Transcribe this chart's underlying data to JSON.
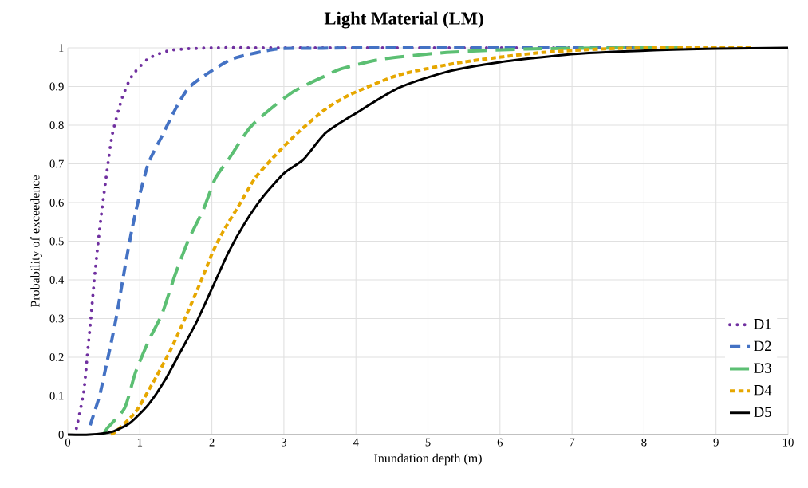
{
  "chart_data": {
    "type": "line",
    "title": "Light Material (LM)",
    "xlabel": "Inundation depth (m)",
    "ylabel": "Probability of exceedence",
    "xlim": [
      0,
      10
    ],
    "xticks": [
      0,
      1,
      2,
      3,
      4,
      5,
      6,
      7,
      8,
      9,
      10
    ],
    "ylim": [
      0,
      1
    ],
    "yticks": [
      0,
      0.1,
      0.2,
      0.3,
      0.4,
      0.5,
      0.6,
      0.7,
      0.8,
      0.9,
      1
    ],
    "grid": true,
    "legend": "bottom right",
    "marker": "none",
    "series": [
      {
        "name": "D1",
        "color": "#7030a0",
        "line_style": "dotted",
        "x": [
          0.12,
          0.22,
          0.27,
          0.32,
          0.365,
          0.417,
          0.476,
          0.543,
          0.617,
          0.75,
          0.886,
          1.118,
          1.44,
          2,
          3,
          5,
          7
        ],
        "values": [
          0.016,
          0.109,
          0.204,
          0.3,
          0.395,
          0.49,
          0.585,
          0.68,
          0.775,
          0.868,
          0.926,
          0.972,
          0.994,
          1,
          1,
          1,
          1
        ]
      },
      {
        "name": "D2",
        "color": "#4472c4",
        "line_style": "dashed",
        "x": [
          0.31,
          0.44,
          0.535,
          0.61,
          0.68,
          0.74,
          0.81,
          0.886,
          0.96,
          1.03,
          1.126,
          1.31,
          1.495,
          1.68,
          1.975,
          2.31,
          2.9,
          3.5,
          4,
          6,
          8
        ],
        "values": [
          0.024,
          0.1,
          0.18,
          0.244,
          0.31,
          0.375,
          0.45,
          0.526,
          0.59,
          0.643,
          0.705,
          0.773,
          0.842,
          0.897,
          0.938,
          0.973,
          0.997,
          0.999,
          1,
          1,
          1
        ]
      },
      {
        "name": "D3",
        "color": "#5cbf73",
        "line_style": "dashed",
        "x": [
          0.5,
          0.55,
          0.79,
          0.94,
          1.126,
          1.31,
          1.495,
          1.68,
          1.88,
          2.05,
          2.23,
          2.53,
          2.86,
          3.16,
          3.58,
          3.8,
          4.37,
          5.26,
          6.37,
          7.7,
          8.5
        ],
        "values": [
          0,
          0.017,
          0.069,
          0.161,
          0.244,
          0.313,
          0.416,
          0.505,
          0.581,
          0.663,
          0.711,
          0.794,
          0.849,
          0.89,
          0.928,
          0.946,
          0.971,
          0.988,
          0.997,
          1,
          1
        ]
      },
      {
        "name": "D4",
        "color": "#e6a700",
        "line_style": "dashed",
        "x": [
          0.6,
          0.68,
          0.94,
          1.16,
          1.42,
          1.64,
          1.86,
          2.01,
          2.16,
          2.38,
          2.6,
          2.86,
          3.19,
          3.58,
          3.93,
          4.6,
          5.48,
          6.59,
          7.7,
          9,
          9.5
        ],
        "values": [
          0,
          0.01,
          0.058,
          0.127,
          0.216,
          0.306,
          0.402,
          0.471,
          0.526,
          0.594,
          0.663,
          0.718,
          0.78,
          0.842,
          0.88,
          0.93,
          0.963,
          0.988,
          0.999,
          1,
          1
        ]
      },
      {
        "name": "D5",
        "color": "#000000",
        "line_style": "solid",
        "x": [
          0,
          0.3,
          0.61,
          0.87,
          1.126,
          1.35,
          1.57,
          1.79,
          2.01,
          2.23,
          2.455,
          2.71,
          3.01,
          3.27,
          3.58,
          4,
          4.6,
          5.26,
          6,
          7.03,
          8.14,
          9,
          10
        ],
        "values": [
          0,
          0,
          0.007,
          0.031,
          0.079,
          0.141,
          0.216,
          0.292,
          0.381,
          0.471,
          0.546,
          0.615,
          0.677,
          0.711,
          0.78,
          0.831,
          0.897,
          0.938,
          0.963,
          0.984,
          0.994,
          0.998,
          1
        ]
      }
    ]
  }
}
